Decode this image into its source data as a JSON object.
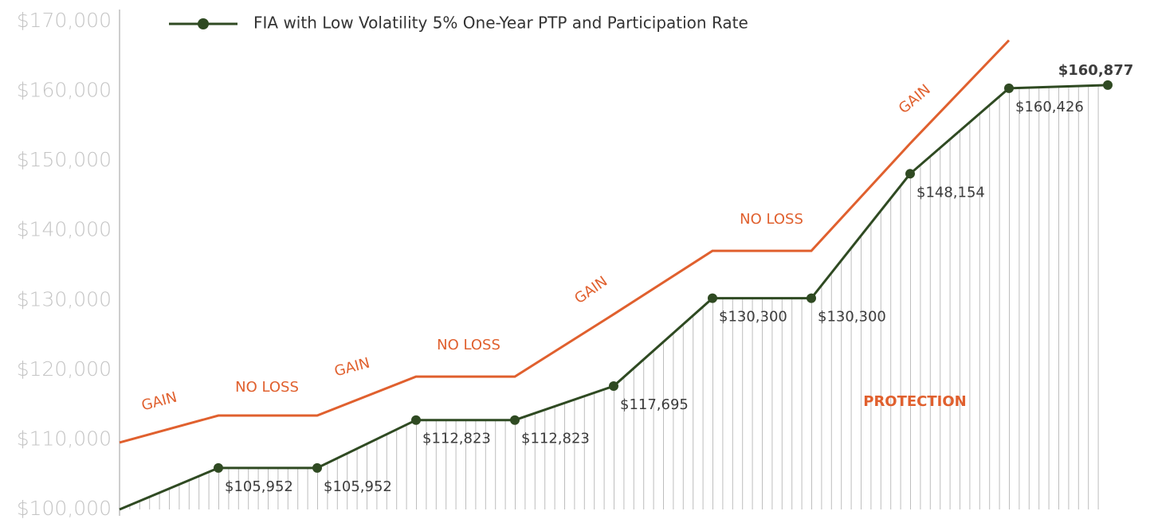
{
  "chart_data": {
    "type": "line",
    "categories": [
      null,
      null,
      null,
      null,
      null,
      null,
      null,
      null,
      null,
      null,
      null
    ],
    "series": [
      {
        "name": "FIA with Low Volatility 5% One-Year PTP and Participation Rate",
        "color": "#2f4a22",
        "values": [
          100000,
          105952,
          105952,
          112823,
          112823,
          117695,
          130300,
          130300,
          148154,
          160426,
          160877
        ],
        "value_labels": [
          null,
          "$105,952",
          "$105,952",
          "$112,823",
          "$112,823",
          "$117,695",
          "$130,300",
          "$130,300",
          "$148,154",
          "$160,426",
          "$160,877"
        ]
      },
      {
        "color": "#e0602e",
        "values": [
          109600,
          113470,
          113470,
          119060,
          119060,
          128000,
          137100,
          137100,
          152500,
          167300,
          null
        ]
      }
    ],
    "annotations": [
      "GAIN",
      "NO LOSS",
      "GAIN",
      "NO LOSS",
      "GAIN",
      "NO LOSS",
      "GAIN",
      "PROTECTION"
    ],
    "ylim": [
      100000,
      170000
    ],
    "yticks": [
      {
        "value": 100000,
        "label": "$100,000"
      },
      {
        "value": 110000,
        "label": "$110,000"
      },
      {
        "value": 120000,
        "label": "$120,000"
      },
      {
        "value": 130000,
        "label": "$130,000"
      },
      {
        "value": 140000,
        "label": "$140,000"
      },
      {
        "value": 150000,
        "label": "$150,000"
      },
      {
        "value": 160000,
        "label": "$160,000"
      },
      {
        "value": 170000,
        "label": "$170,000"
      }
    ],
    "grid": false
  }
}
